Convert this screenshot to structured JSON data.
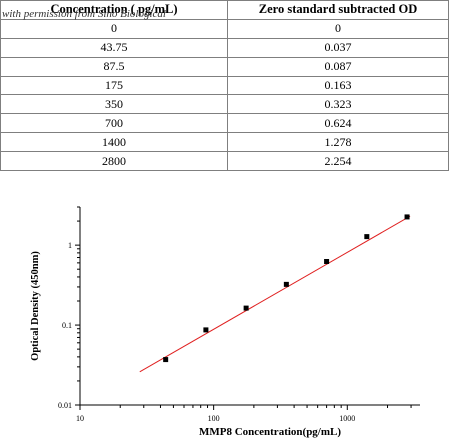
{
  "table": {
    "headers": [
      "Concentration ( pg/mL)",
      "Zero standard subtracted OD"
    ],
    "rows": [
      [
        "0",
        "0"
      ],
      [
        "43.75",
        "0.037"
      ],
      [
        "87.5",
        "0.087"
      ],
      [
        "175",
        "0.163"
      ],
      [
        "350",
        "0.323"
      ],
      [
        "700",
        "0.624"
      ],
      [
        "1400",
        "1.278"
      ],
      [
        "2800",
        "2.254"
      ]
    ]
  },
  "watermark": "with permission from Sino Biological",
  "chart_data": {
    "type": "scatter",
    "xscale": "log",
    "yscale": "log",
    "xlim": [
      10,
      3500
    ],
    "ylim": [
      0.01,
      3
    ],
    "xticks": [
      10,
      100,
      1000
    ],
    "yticks": [
      0.01,
      0.1,
      1
    ],
    "xtick_labels": [
      "10",
      "100",
      "1000"
    ],
    "ytick_labels": [
      "0.01",
      "0.1",
      "1"
    ],
    "xlabel": "MMP8  Concentration(pg/mL)",
    "ylabel": "Optical Density (450nm)",
    "series": [
      {
        "x": [
          43.75,
          87.5,
          175,
          350,
          700,
          1400,
          2800
        ],
        "y": [
          0.037,
          0.087,
          0.163,
          0.323,
          0.624,
          1.278,
          2.254
        ],
        "color": "#000000",
        "marker": "square"
      }
    ],
    "fit_line": {
      "x": [
        28,
        2950
      ],
      "y": [
        0.026,
        2.3
      ],
      "color": "#e02020"
    }
  }
}
